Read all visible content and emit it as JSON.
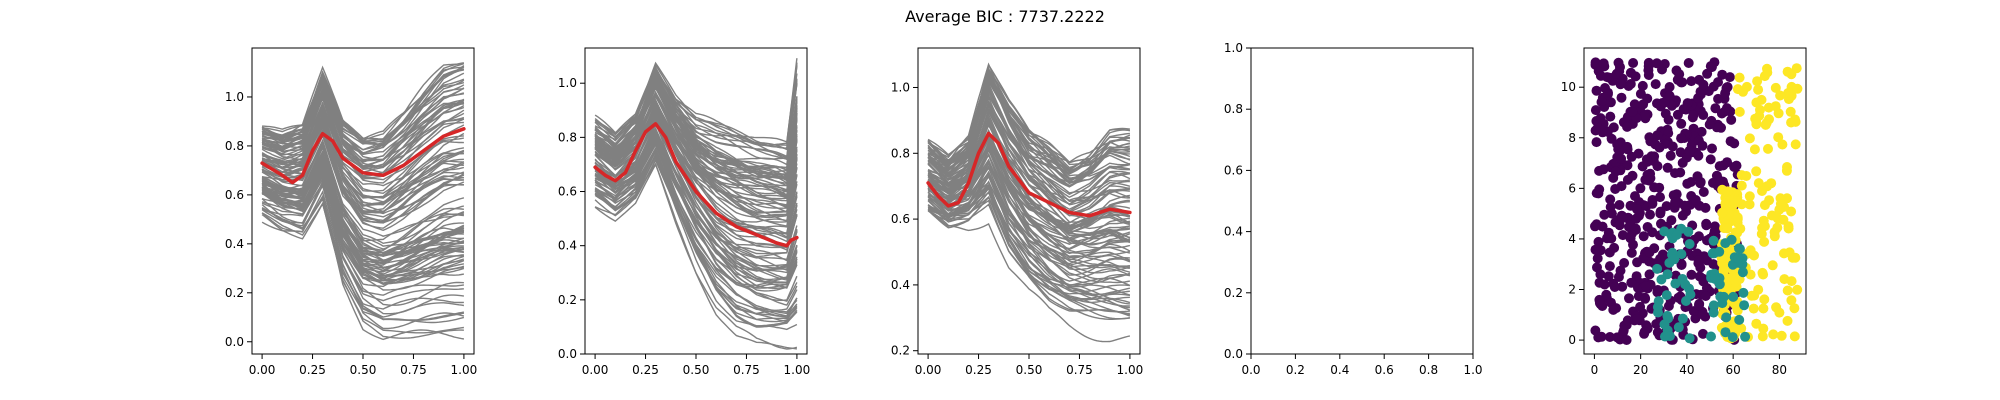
{
  "figure": {
    "suptitle": "Average BIC : 7737.2222",
    "colors": {
      "curve": "#808080",
      "mean": "#d62728",
      "axis": "#000000"
    }
  },
  "chart_data": [
    {
      "type": "line",
      "title": "",
      "xlabel": "",
      "ylabel": "",
      "xlim": [
        -0.05,
        1.05
      ],
      "ylim": [
        -0.05,
        1.2
      ],
      "xticks": [
        "0.00",
        "0.25",
        "0.50",
        "0.75",
        "1.00"
      ],
      "yticks": [
        "0.0",
        "0.2",
        "0.4",
        "0.6",
        "0.8",
        "1.0"
      ],
      "grid": false,
      "curve_count": 120,
      "envelope": {
        "x": [
          0,
          0.1,
          0.2,
          0.3,
          0.4,
          0.5,
          0.6,
          0.7,
          0.8,
          0.9,
          1.0
        ],
        "top": [
          0.88,
          0.85,
          0.88,
          1.1,
          0.9,
          0.84,
          0.85,
          0.93,
          1.03,
          1.12,
          1.15
        ],
        "bottom": [
          0.5,
          0.45,
          0.42,
          0.55,
          0.22,
          0.05,
          0.0,
          0.0,
          0.0,
          0.0,
          0.0
        ]
      },
      "mean": {
        "x": [
          0,
          0.1,
          0.15,
          0.2,
          0.25,
          0.3,
          0.35,
          0.4,
          0.5,
          0.6,
          0.7,
          0.8,
          0.9,
          1.0
        ],
        "y": [
          0.73,
          0.68,
          0.65,
          0.68,
          0.78,
          0.85,
          0.82,
          0.75,
          0.69,
          0.68,
          0.72,
          0.78,
          0.84,
          0.87
        ]
      }
    },
    {
      "type": "line",
      "title": "",
      "xlabel": "",
      "ylabel": "",
      "xlim": [
        -0.05,
        1.05
      ],
      "ylim": [
        0.0,
        1.13
      ],
      "xticks": [
        "0.00",
        "0.25",
        "0.50",
        "0.75",
        "1.00"
      ],
      "yticks": [
        "0.0",
        "0.2",
        "0.4",
        "0.6",
        "0.8",
        "1.0"
      ],
      "grid": false,
      "curve_count": 110,
      "envelope": {
        "x": [
          0,
          0.1,
          0.2,
          0.3,
          0.4,
          0.5,
          0.6,
          0.7,
          0.8,
          0.9,
          0.95,
          1.0
        ],
        "top": [
          0.86,
          0.8,
          0.88,
          1.07,
          0.95,
          0.87,
          0.84,
          0.82,
          0.8,
          0.79,
          0.78,
          1.08
        ],
        "bottom": [
          0.55,
          0.5,
          0.55,
          0.68,
          0.48,
          0.3,
          0.15,
          0.06,
          0.02,
          0.01,
          0.01,
          0.01
        ]
      },
      "mean": {
        "x": [
          0,
          0.05,
          0.1,
          0.15,
          0.2,
          0.25,
          0.3,
          0.35,
          0.4,
          0.5,
          0.6,
          0.7,
          0.8,
          0.9,
          0.95,
          0.97,
          1.0
        ],
        "y": [
          0.69,
          0.66,
          0.64,
          0.67,
          0.75,
          0.82,
          0.85,
          0.8,
          0.71,
          0.6,
          0.52,
          0.47,
          0.44,
          0.41,
          0.4,
          0.42,
          0.43
        ]
      }
    },
    {
      "type": "line",
      "title": "",
      "xlabel": "",
      "ylabel": "",
      "xlim": [
        -0.05,
        1.05
      ],
      "ylim": [
        0.19,
        1.12
      ],
      "xticks": [
        "0.00",
        "0.25",
        "0.50",
        "0.75",
        "1.00"
      ],
      "yticks": [
        "0.2",
        "0.4",
        "0.6",
        "0.8",
        "1.0"
      ],
      "grid": false,
      "curve_count": 110,
      "envelope": {
        "x": [
          0,
          0.1,
          0.2,
          0.3,
          0.4,
          0.5,
          0.6,
          0.7,
          0.8,
          0.9,
          1.0
        ],
        "top": [
          0.83,
          0.78,
          0.84,
          1.07,
          0.95,
          0.86,
          0.82,
          0.77,
          0.8,
          0.86,
          0.86
        ],
        "bottom": [
          0.6,
          0.56,
          0.57,
          0.6,
          0.45,
          0.36,
          0.3,
          0.27,
          0.25,
          0.23,
          0.22
        ]
      },
      "mean": {
        "x": [
          0,
          0.05,
          0.1,
          0.15,
          0.2,
          0.25,
          0.3,
          0.35,
          0.4,
          0.5,
          0.6,
          0.7,
          0.8,
          0.9,
          1.0
        ],
        "y": [
          0.71,
          0.67,
          0.64,
          0.65,
          0.71,
          0.8,
          0.86,
          0.83,
          0.76,
          0.68,
          0.65,
          0.62,
          0.61,
          0.63,
          0.62
        ]
      }
    },
    {
      "type": "line",
      "title": "",
      "xlabel": "",
      "ylabel": "",
      "xlim": [
        0.0,
        1.0
      ],
      "ylim": [
        0.0,
        1.0
      ],
      "xticks": [
        "0.0",
        "0.2",
        "0.4",
        "0.6",
        "0.8",
        "1.0"
      ],
      "yticks": [
        "0.0",
        "0.2",
        "0.4",
        "0.6",
        "0.8",
        "1.0"
      ],
      "grid": false,
      "empty": true
    },
    {
      "type": "scatter",
      "title": "",
      "xlabel": "",
      "ylabel": "",
      "xlim": [
        -4.5,
        91.5
      ],
      "ylim": [
        -0.55,
        11.55
      ],
      "xticks": [
        "0",
        "20",
        "40",
        "60",
        "80"
      ],
      "yticks": [
        "0",
        "2",
        "4",
        "6",
        "8",
        "10"
      ],
      "grid": false,
      "clusters": [
        {
          "color": "#440154",
          "count": 520,
          "regions": [
            {
              "x": [
                0,
                62
              ],
              "y": [
                0,
                11
              ]
            }
          ]
        },
        {
          "color": "#fde725",
          "count": 230,
          "regions": [
            {
              "x": [
                62,
                88
              ],
              "y": [
                0,
                11
              ]
            },
            {
              "x": [
                55,
                62
              ],
              "y": [
                0,
                6
              ]
            }
          ]
        },
        {
          "color": "#21918c",
          "count": 70,
          "regions": [
            {
              "x": [
                27,
                43
              ],
              "y": [
                0,
                4.5
              ]
            },
            {
              "x": [
                50,
                66
              ],
              "y": [
                0,
                4
              ]
            }
          ]
        }
      ]
    }
  ]
}
